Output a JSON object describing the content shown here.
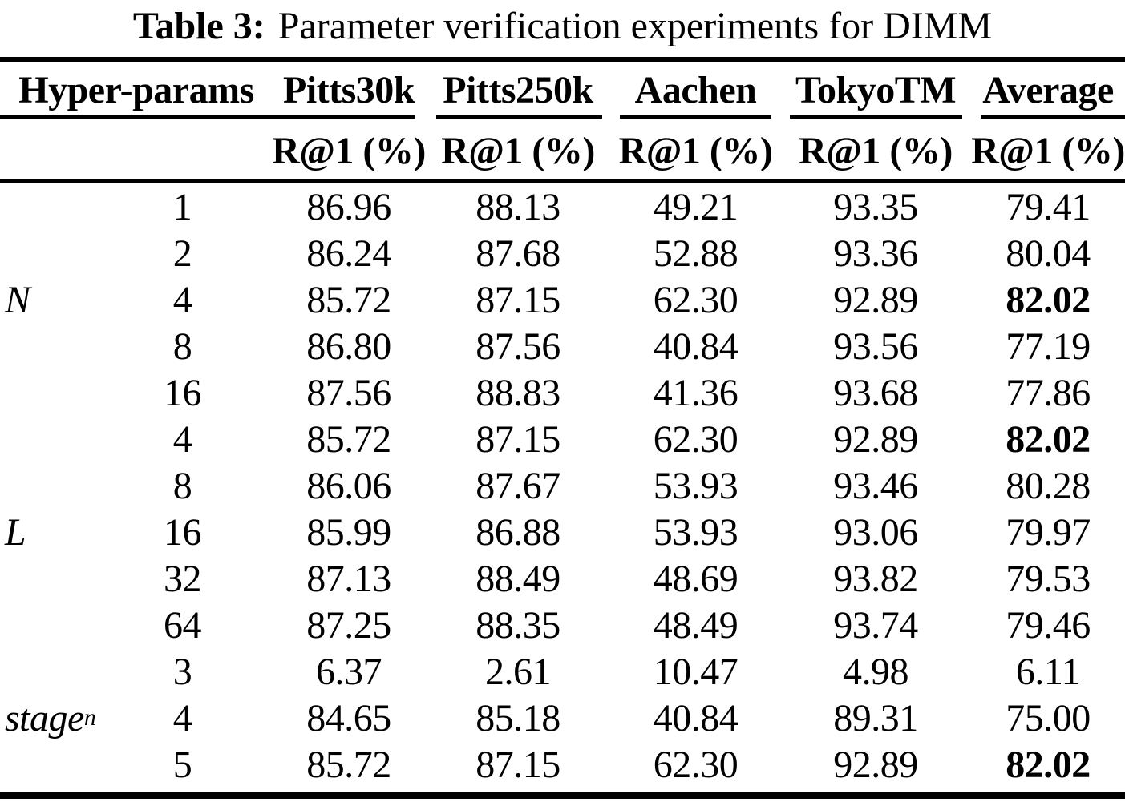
{
  "caption": {
    "label": "Table 3:",
    "text": "Parameter verification experiments for DIMM"
  },
  "table": {
    "header": {
      "hyper_params_label": "Hyper-params",
      "dataset_columns": [
        "Pitts30k",
        "Pitts250k",
        "Aachen",
        "TokyoTM",
        "Average"
      ]
    },
    "subheader_label": "R@1 (%)",
    "groups": [
      {
        "name": "N",
        "subscript": "",
        "rows": [
          {
            "param": "1",
            "values": [
              "86.96",
              "88.13",
              "49.21",
              "93.35",
              "79.41"
            ],
            "bold": []
          },
          {
            "param": "2",
            "values": [
              "86.24",
              "87.68",
              "52.88",
              "93.36",
              "80.04"
            ],
            "bold": []
          },
          {
            "param": "4",
            "values": [
              "85.72",
              "87.15",
              "62.30",
              "92.89",
              "82.02"
            ],
            "bold": [
              4
            ]
          },
          {
            "param": "8",
            "values": [
              "86.80",
              "87.56",
              "40.84",
              "93.56",
              "77.19"
            ],
            "bold": []
          },
          {
            "param": "16",
            "values": [
              "87.56",
              "88.83",
              "41.36",
              "93.68",
              "77.86"
            ],
            "bold": []
          }
        ]
      },
      {
        "name": "L",
        "subscript": "",
        "rows": [
          {
            "param": "4",
            "values": [
              "85.72",
              "87.15",
              "62.30",
              "92.89",
              "82.02"
            ],
            "bold": [
              4
            ]
          },
          {
            "param": "8",
            "values": [
              "86.06",
              "87.67",
              "53.93",
              "93.46",
              "80.28"
            ],
            "bold": []
          },
          {
            "param": "16",
            "values": [
              "85.99",
              "86.88",
              "53.93",
              "93.06",
              "79.97"
            ],
            "bold": []
          },
          {
            "param": "32",
            "values": [
              "87.13",
              "88.49",
              "48.69",
              "93.82",
              "79.53"
            ],
            "bold": []
          },
          {
            "param": "64",
            "values": [
              "87.25",
              "88.35",
              "48.49",
              "93.74",
              "79.46"
            ],
            "bold": []
          }
        ]
      },
      {
        "name": "stage",
        "subscript": "n",
        "rows": [
          {
            "param": "3",
            "values": [
              "6.37",
              "2.61",
              "10.47",
              "4.98",
              "6.11"
            ],
            "bold": []
          },
          {
            "param": "4",
            "values": [
              "84.65",
              "85.18",
              "40.84",
              "89.31",
              "75.00"
            ],
            "bold": []
          },
          {
            "param": "5",
            "values": [
              "85.72",
              "87.15",
              "62.30",
              "92.89",
              "82.02"
            ],
            "bold": [
              4
            ]
          }
        ]
      }
    ]
  }
}
